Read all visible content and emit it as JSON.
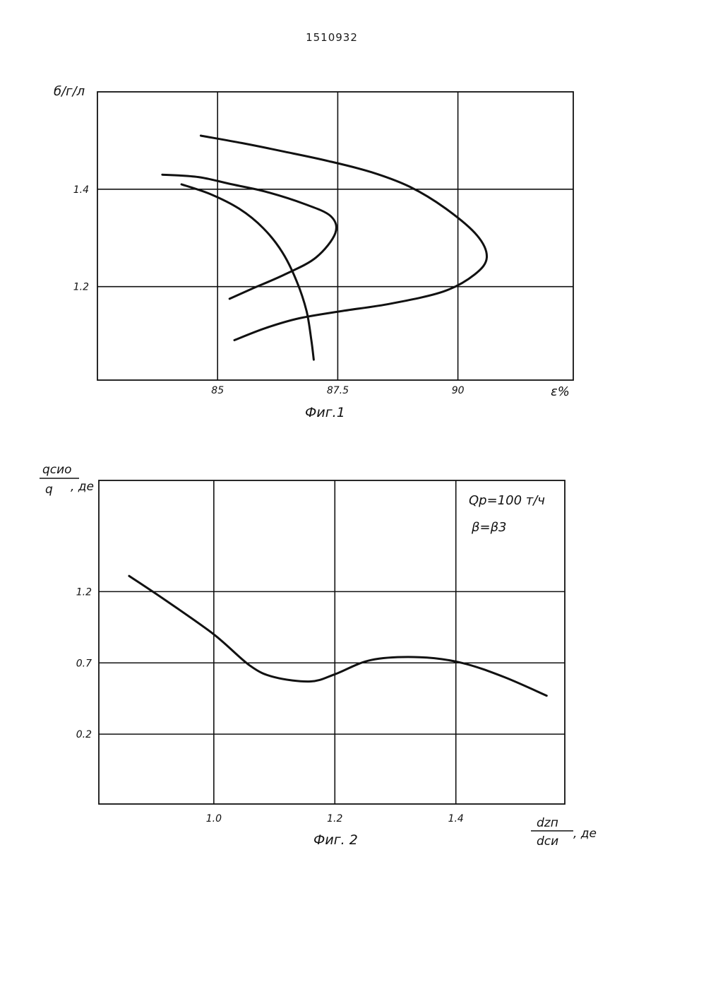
{
  "page": {
    "number": "1510932"
  },
  "chart_data": [
    {
      "type": "line",
      "caption": "Фиг.1",
      "ylabel": "б/г/л",
      "xlabel": "ε%",
      "x_ticks": [
        "85",
        "87.5",
        "90"
      ],
      "x_tick_values": [
        85,
        87.5,
        90
      ],
      "y_ticks": [
        "1.4",
        "1.2"
      ],
      "y_tick_values": [
        1.4,
        1.2
      ],
      "xlim": [
        82.5,
        92.4
      ],
      "ylim": [
        1.008,
        1.6
      ],
      "grid": true,
      "series": [
        {
          "points": [
            [
              84.25,
              1.41
            ],
            [
              84.85,
              1.39
            ],
            [
              85.45,
              1.36
            ],
            [
              85.95,
              1.32
            ],
            [
              86.35,
              1.27
            ],
            [
              86.65,
              1.21
            ],
            [
              86.85,
              1.15
            ],
            [
              86.95,
              1.09
            ],
            [
              87.0,
              1.05
            ]
          ]
        },
        {
          "points": [
            [
              83.85,
              1.43
            ],
            [
              84.6,
              1.425
            ],
            [
              85.3,
              1.41
            ],
            [
              86.0,
              1.395
            ],
            [
              86.8,
              1.37
            ],
            [
              87.35,
              1.345
            ],
            [
              87.45,
              1.31
            ],
            [
              87.05,
              1.26
            ],
            [
              86.4,
              1.225
            ],
            [
              85.7,
              1.195
            ],
            [
              85.25,
              1.175
            ]
          ]
        },
        {
          "points": [
            [
              84.65,
              1.51
            ],
            [
              85.5,
              1.495
            ],
            [
              86.4,
              1.477
            ],
            [
              87.3,
              1.458
            ],
            [
              88.2,
              1.435
            ],
            [
              89.0,
              1.405
            ],
            [
              89.75,
              1.36
            ],
            [
              90.4,
              1.305
            ],
            [
              90.6,
              1.26
            ],
            [
              90.35,
              1.225
            ],
            [
              89.7,
              1.19
            ],
            [
              88.6,
              1.165
            ],
            [
              87.6,
              1.15
            ],
            [
              86.7,
              1.135
            ],
            [
              86.0,
              1.115
            ],
            [
              85.35,
              1.09
            ]
          ]
        }
      ]
    },
    {
      "type": "line",
      "caption": "Фиг. 2",
      "ylabel": {
        "numerator": "qсио",
        "denominator": "q",
        "unit": ", де"
      },
      "xlabel": {
        "numerator": "dzп",
        "denominator": "dси",
        "unit": ", де"
      },
      "annotation": [
        "Qр=100 т/ч",
        "β=β3"
      ],
      "x_ticks": [
        "1.0",
        "1.2",
        "1.4"
      ],
      "x_tick_values": [
        1.0,
        1.2,
        1.4
      ],
      "y_ticks": [
        "1.2",
        "0.7",
        "0.2"
      ],
      "y_tick_values": [
        1.2,
        0.7,
        0.2
      ],
      "xlim": [
        0.81,
        1.58
      ],
      "ylim": [
        -0.29,
        1.98
      ],
      "grid": true,
      "series": [
        {
          "points": [
            [
              0.86,
              1.31
            ],
            [
              0.92,
              1.14
            ],
            [
              1.0,
              0.9
            ],
            [
              1.06,
              0.68
            ],
            [
              1.1,
              0.6
            ],
            [
              1.16,
              0.57
            ],
            [
              1.2,
              0.62
            ],
            [
              1.26,
              0.72
            ],
            [
              1.34,
              0.74
            ],
            [
              1.41,
              0.7
            ],
            [
              1.48,
              0.6
            ],
            [
              1.55,
              0.47
            ]
          ]
        }
      ]
    }
  ]
}
